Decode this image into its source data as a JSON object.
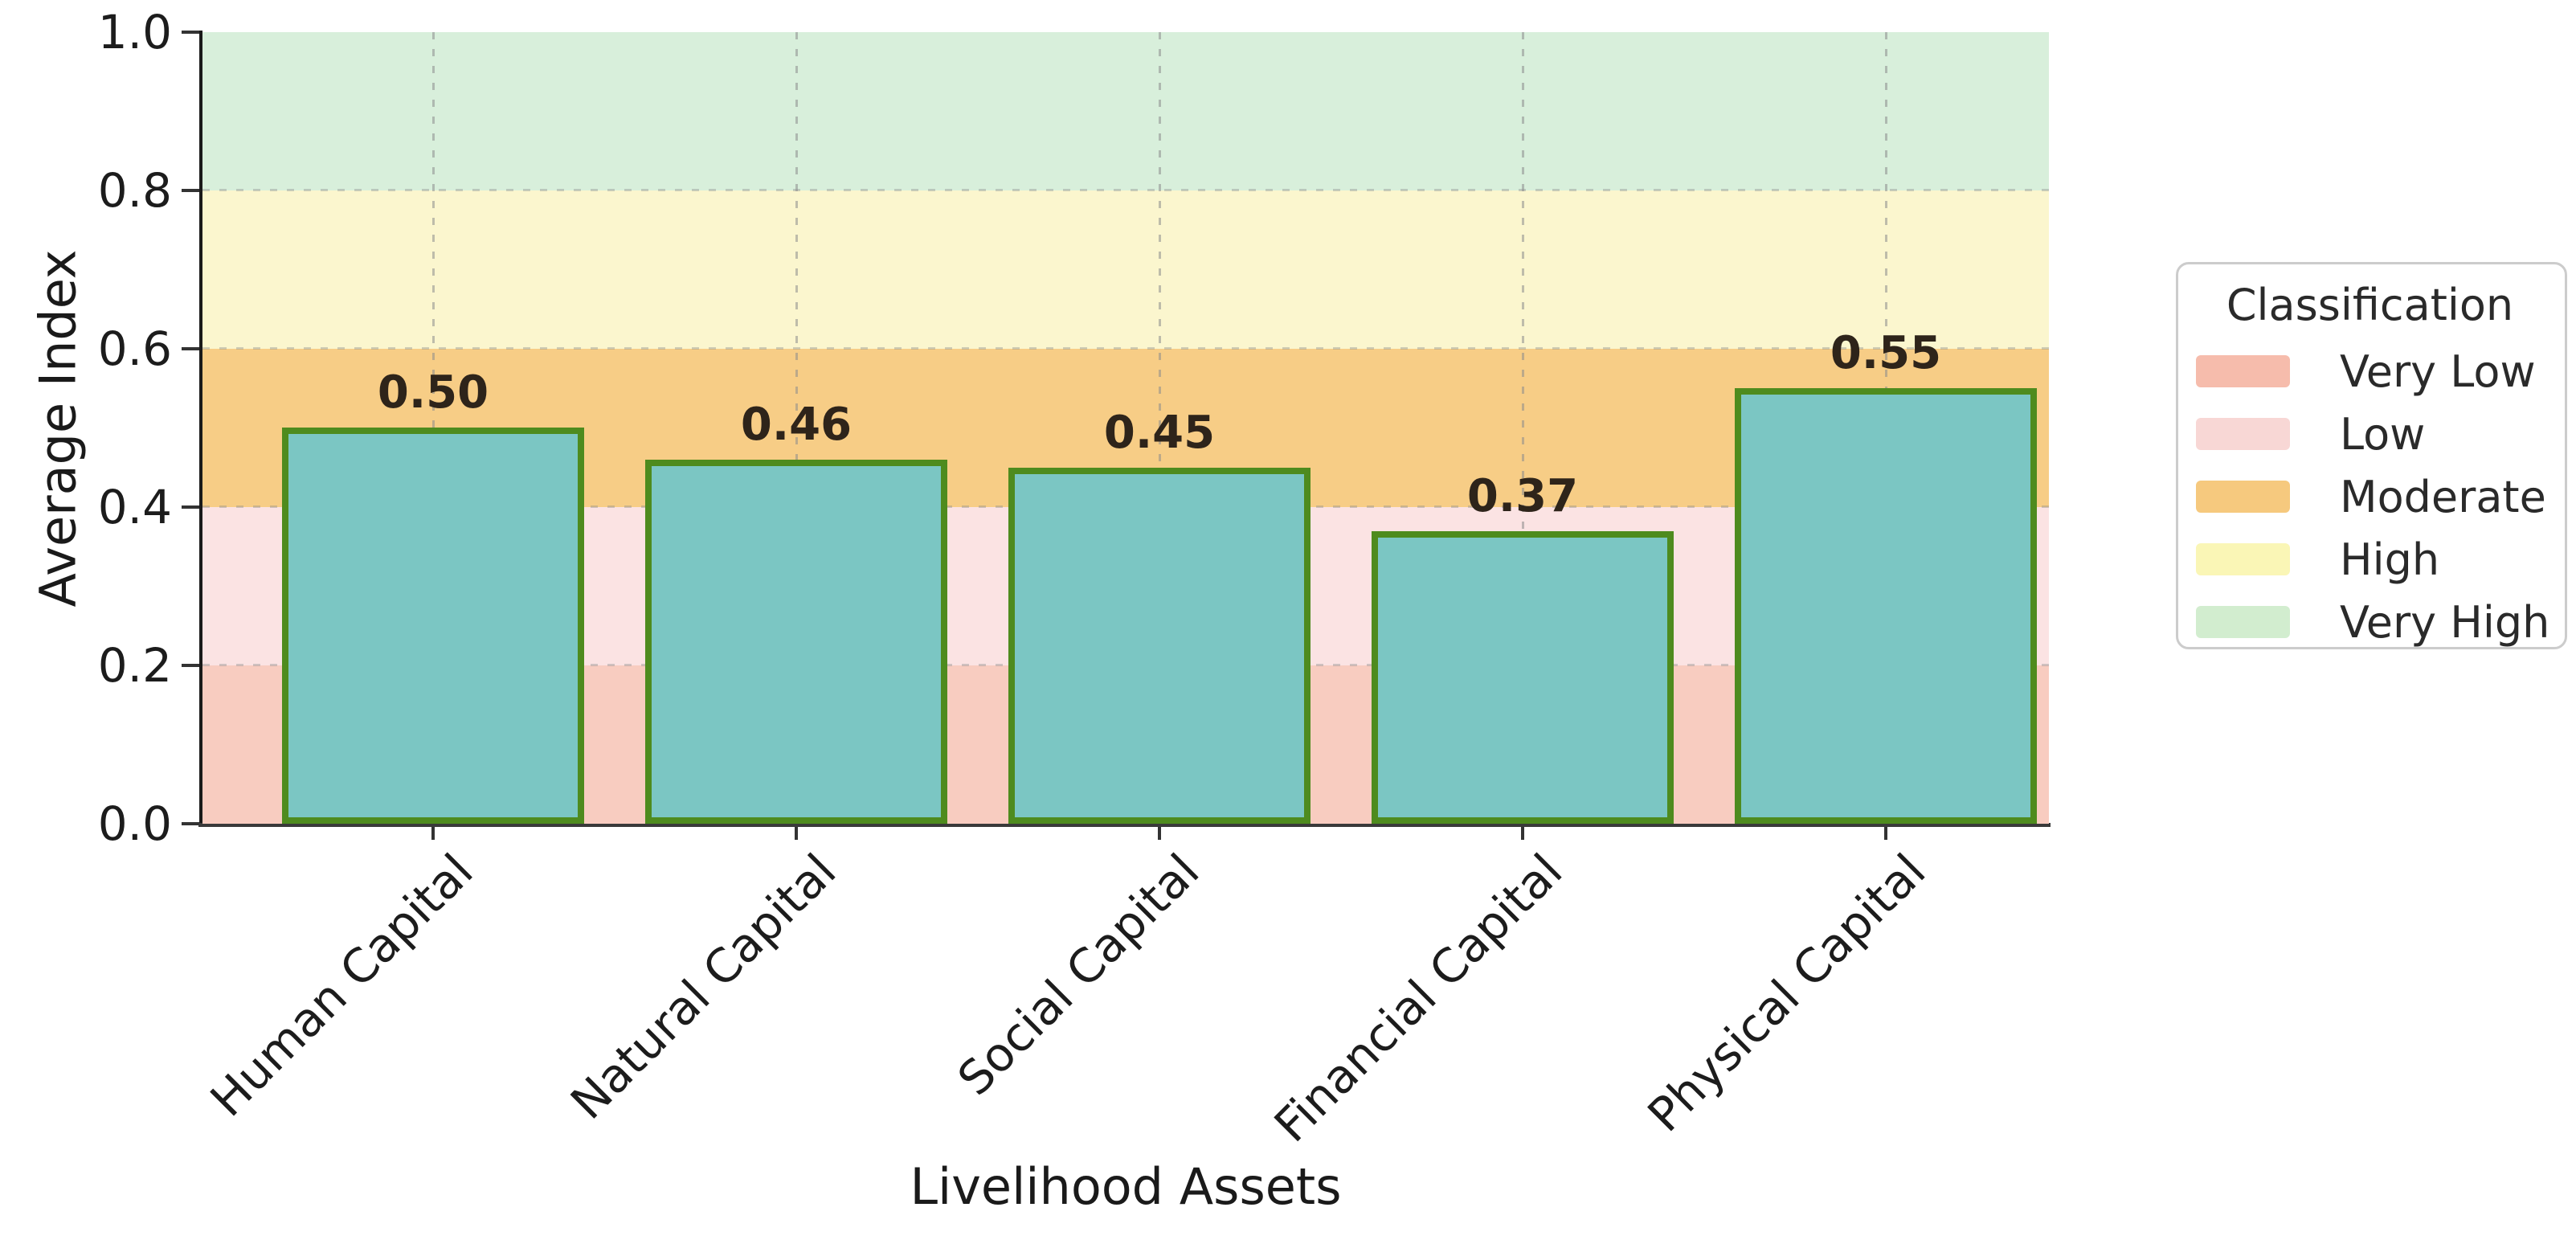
{
  "chart_data": {
    "type": "bar",
    "title": "",
    "xlabel": "Livelihood Assets",
    "ylabel": "Average Index",
    "categories": [
      "Human Capital",
      "Natural Capital",
      "Social Capital",
      "Financial Capital",
      "Physical Capital"
    ],
    "values": [
      0.5,
      0.46,
      0.45,
      0.37,
      0.55
    ],
    "value_labels": [
      "0.50",
      "0.46",
      "0.45",
      "0.37",
      "0.55"
    ],
    "ylim": [
      0.0,
      1.0
    ],
    "yticks": [
      "0.0",
      "0.2",
      "0.4",
      "0.6",
      "0.8",
      "1.0"
    ],
    "ytick_values": [
      0.0,
      0.2,
      0.4,
      0.6,
      0.8,
      1.0
    ],
    "grid": "dashed, vertical at bar centers and horizontal at band boundaries",
    "legend_position": "right, outside plot",
    "colors": {
      "bar_fill": "#7bc6c3",
      "bar_edge": "#4e8b1e",
      "value_label": "#2e241a",
      "axis_text": "#1c1c1c"
    },
    "bands": [
      {
        "label": "Very Low",
        "range": [
          0.0,
          0.2
        ],
        "band_color": "#f8ccc0",
        "legend_color": "#f6bcac"
      },
      {
        "label": "Low",
        "range": [
          0.2,
          0.4
        ],
        "band_color": "#fbe3e3",
        "legend_color": "#f8d7d5"
      },
      {
        "label": "Moderate",
        "range": [
          0.4,
          0.6
        ],
        "band_color": "#f7cd86",
        "legend_color": "#f6c97e"
      },
      {
        "label": "High",
        "range": [
          0.6,
          0.8
        ],
        "band_color": "#fbf6ce",
        "legend_color": "#faf6b6"
      },
      {
        "label": "Very High",
        "range": [
          0.8,
          1.0
        ],
        "band_color": "#d8efdb",
        "legend_color": "#d2edcf"
      }
    ],
    "legend": {
      "title": "Classification"
    }
  }
}
